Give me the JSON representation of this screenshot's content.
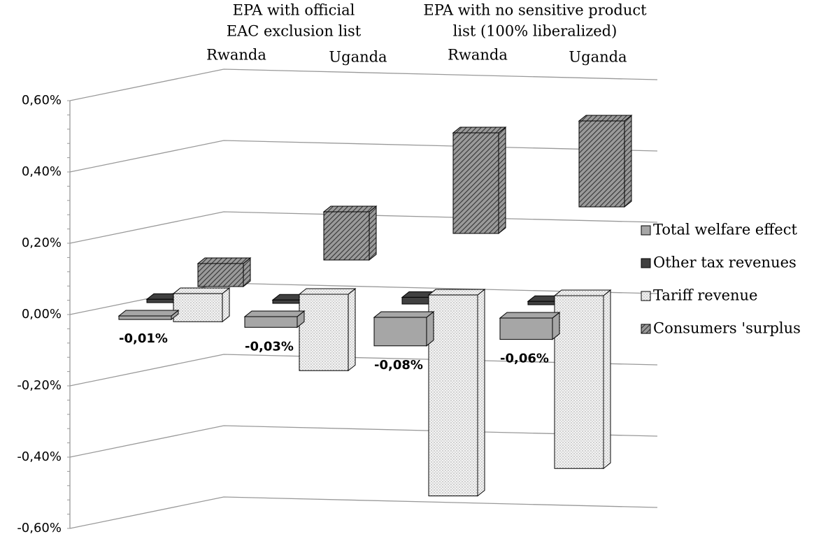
{
  "chart_data": {
    "type": "bar3d",
    "groups": [
      {
        "lines": [
          "EPA with official",
          "EAC exclusion list"
        ]
      },
      {
        "lines": [
          "EPA with no sensitive product",
          "list (100% liberalized)"
        ]
      }
    ],
    "categories": [
      "Rwanda",
      "Uganda",
      "Rwanda",
      "Uganda"
    ],
    "series": [
      {
        "name": "Total welfare effect",
        "color": "#a6a6a6",
        "values": [
          -0.01,
          -0.03,
          -0.08,
          -0.06
        ],
        "value_labels": [
          "-0,01%",
          "-0,03%",
          "-0,08%",
          "-0,06%"
        ]
      },
      {
        "name": "Other tax revenues",
        "color": "#404040",
        "values": [
          0.01,
          0.01,
          0.02,
          0.01
        ]
      },
      {
        "name": "Tariff revenue",
        "color": "#f2f2f2",
        "pattern": "dots",
        "values": [
          -0.07,
          -0.19,
          -0.5,
          -0.43
        ]
      },
      {
        "name": "Consumers 'surplus",
        "color": "#7f7f7f",
        "pattern": "hatch",
        "values": [
          0.11,
          0.23,
          0.48,
          0.41
        ]
      }
    ],
    "ylim": [
      -0.6,
      0.6
    ],
    "yticks": [
      {
        "value": -0.6,
        "label": "-0,60%"
      },
      {
        "value": -0.4,
        "label": "-0,40%"
      },
      {
        "value": -0.2,
        "label": "-0,20%"
      },
      {
        "value": 0,
        "label": "0,00%"
      },
      {
        "value": 0.2,
        "label": "0,20%"
      },
      {
        "value": 0.4,
        "label": "0,40%"
      },
      {
        "value": 0.6,
        "label": "0,60%"
      }
    ],
    "grid": true
  }
}
